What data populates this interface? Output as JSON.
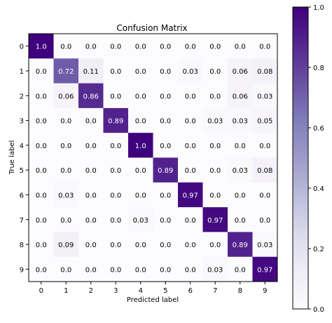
{
  "chart_data": {
    "type": "heatmap",
    "title": "Confusion Matrix",
    "xlabel": "Predicted label",
    "ylabel": "True label",
    "x_ticks": [
      "0",
      "1",
      "2",
      "3",
      "4",
      "5",
      "6",
      "7",
      "8",
      "9"
    ],
    "y_ticks": [
      "0",
      "1",
      "2",
      "3",
      "4",
      "5",
      "6",
      "7",
      "8",
      "9"
    ],
    "cell_labels": [
      [
        "1.0",
        "0.0",
        "0.0",
        "0.0",
        "0.0",
        "0.0",
        "0.0",
        "0.0",
        "0.0",
        "0.0"
      ],
      [
        "0.0",
        "0.72",
        "0.11",
        "0.0",
        "0.0",
        "0.0",
        "0.03",
        "0.0",
        "0.06",
        "0.08"
      ],
      [
        "0.0",
        "0.06",
        "0.86",
        "0.0",
        "0.0",
        "0.0",
        "0.0",
        "0.0",
        "0.06",
        "0.03"
      ],
      [
        "0.0",
        "0.0",
        "0.0",
        "0.89",
        "0.0",
        "0.0",
        "0.0",
        "0.03",
        "0.03",
        "0.05"
      ],
      [
        "0.0",
        "0.0",
        "0.0",
        "0.0",
        "1.0",
        "0.0",
        "0.0",
        "0.0",
        "0.0",
        "0.0"
      ],
      [
        "0.0",
        "0.0",
        "0.0",
        "0.0",
        "0.0",
        "0.89",
        "0.0",
        "0.0",
        "0.03",
        "0.08"
      ],
      [
        "0.0",
        "0.03",
        "0.0",
        "0.0",
        "0.0",
        "0.0",
        "0.97",
        "0.0",
        "0.0",
        "0.0"
      ],
      [
        "0.0",
        "0.0",
        "0.0",
        "0.0",
        "0.03",
        "0.0",
        "0.0",
        "0.97",
        "0.0",
        "0.0"
      ],
      [
        "0.0",
        "0.09",
        "0.0",
        "0.0",
        "0.0",
        "0.0",
        "0.0",
        "0.0",
        "0.89",
        "0.03"
      ],
      [
        "0.0",
        "0.0",
        "0.0",
        "0.0",
        "0.0",
        "0.0",
        "0.0",
        "0.03",
        "0.0",
        "0.97"
      ]
    ],
    "colorbar": {
      "range": [
        0.0,
        1.0
      ],
      "ticks": [
        "0.0",
        "0.2",
        "0.4",
        "0.6",
        "0.8",
        "1.0"
      ],
      "colormap": "Purples",
      "color_low": "#fcfbfd",
      "color_high": "#3f007d"
    },
    "grid": false,
    "legend": "none"
  }
}
